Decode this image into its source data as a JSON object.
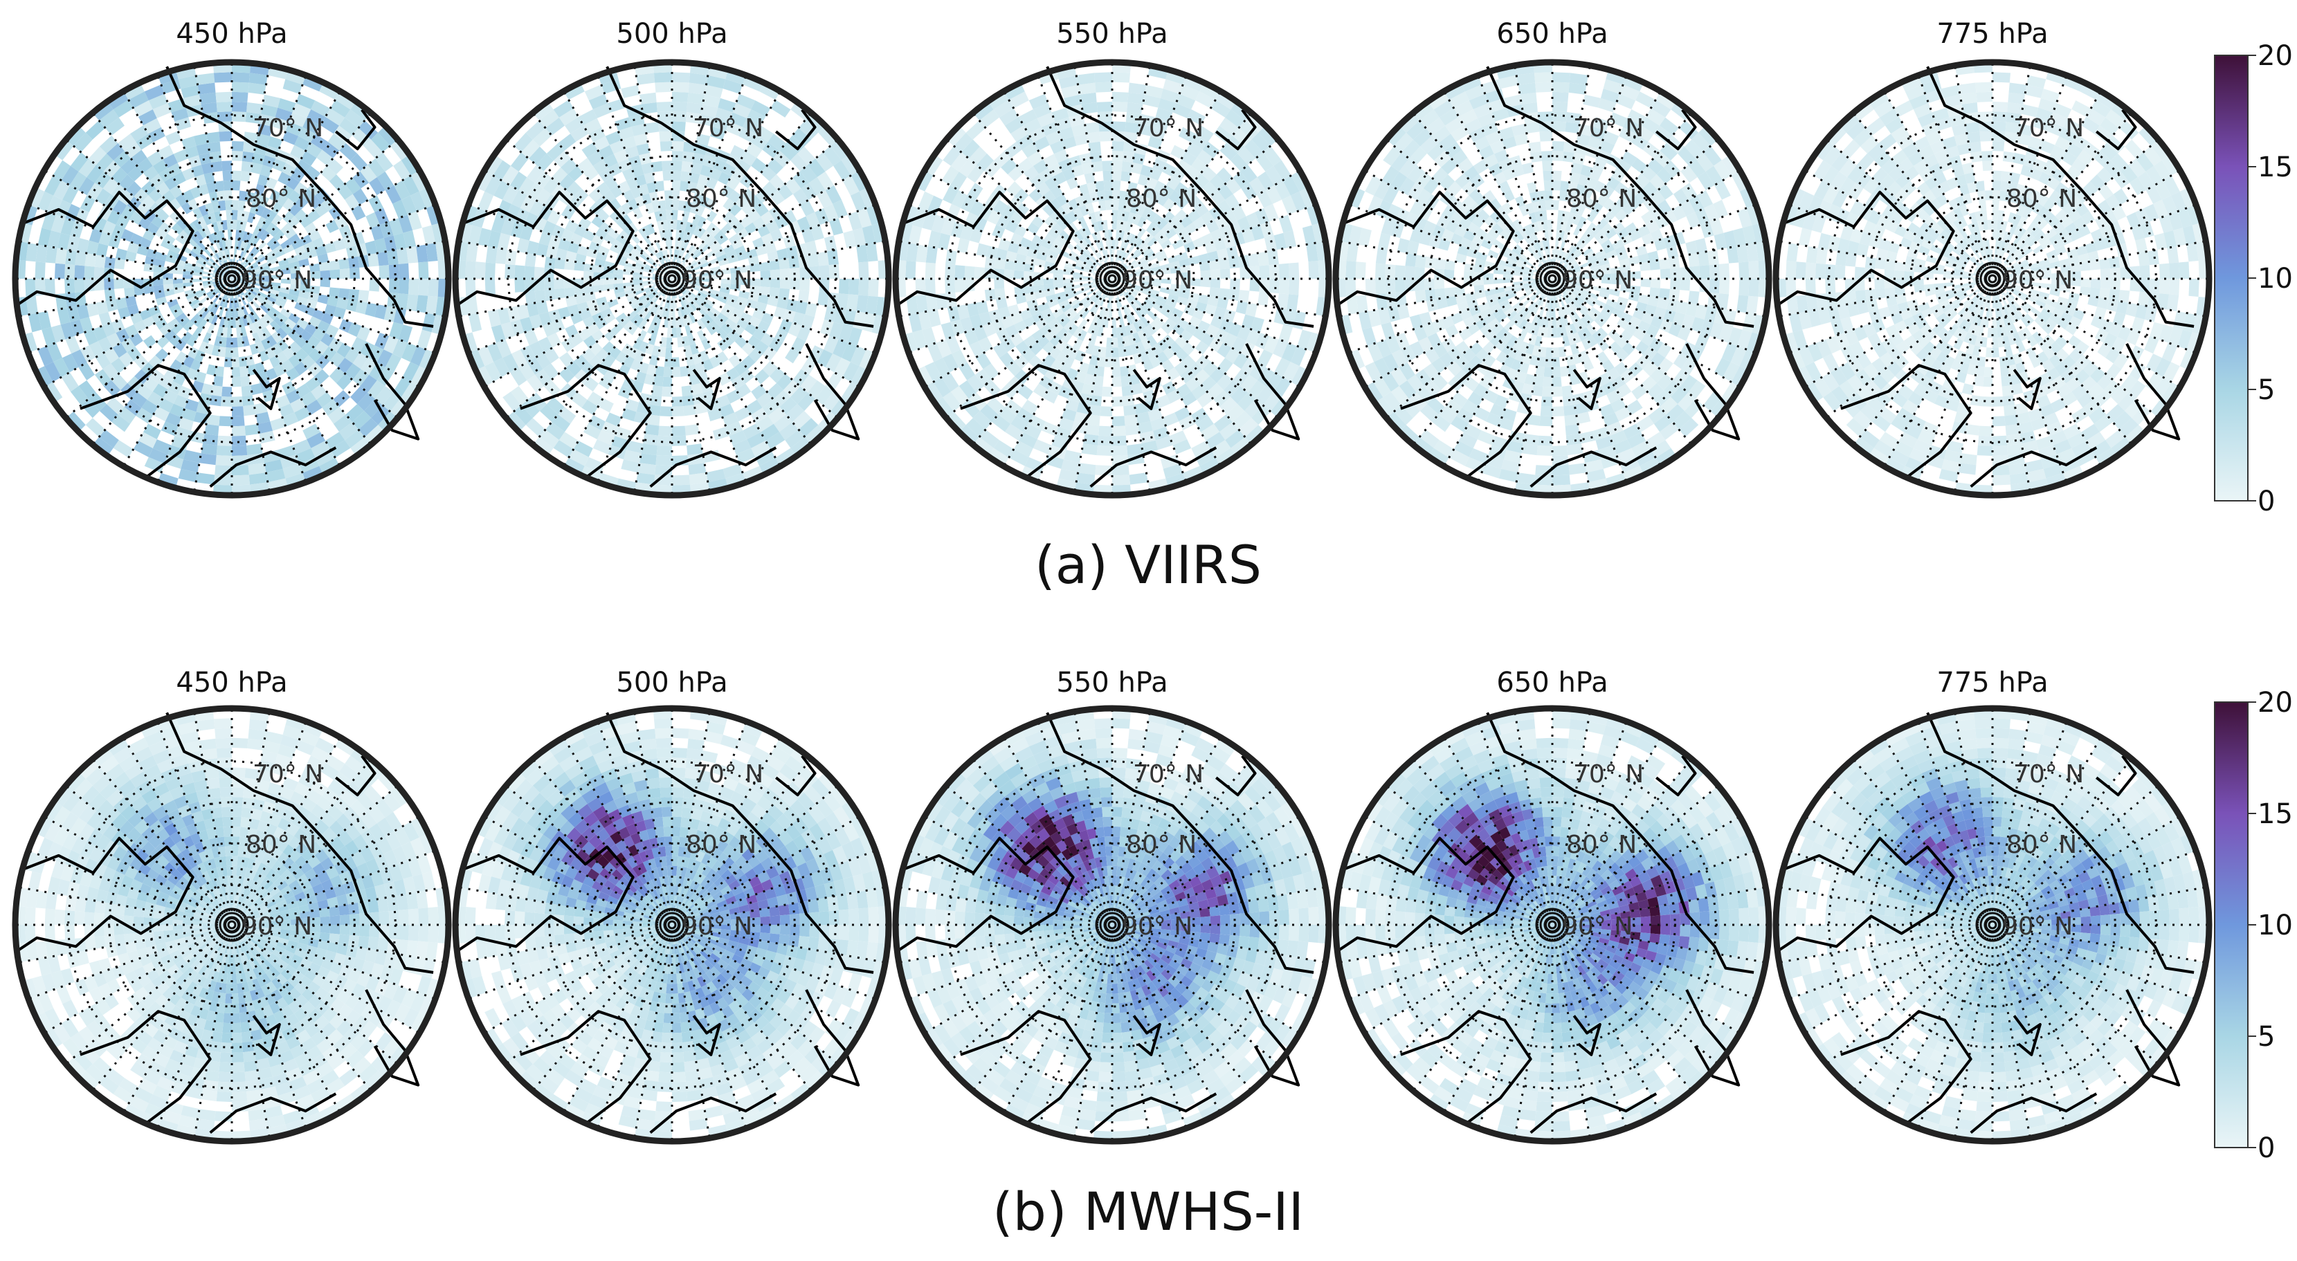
{
  "chart_data": {
    "type": "heatmap",
    "projection": "north-polar-stereographic",
    "latitude_circle_labels": [
      "70° N",
      "80° N",
      "90° N"
    ],
    "colorbar": {
      "range": [
        0,
        20
      ],
      "ticks": [
        "0",
        "5",
        "10",
        "15",
        "20"
      ],
      "colors": [
        "#eaf5f7",
        "#a9d6e5",
        "#6f98dd",
        "#7a52b8",
        "#3e1138"
      ]
    },
    "rows": [
      {
        "caption": "(a) VIIRS",
        "panels": [
          {
            "title": "450 hPa",
            "background_level": 4.5,
            "hotspots": []
          },
          {
            "title": "500 hPa",
            "background_level": 2.5,
            "hotspots": []
          },
          {
            "title": "550 hPa",
            "background_level": 1.8,
            "hotspots": []
          },
          {
            "title": "650 hPa",
            "background_level": 1.6,
            "hotspots": []
          },
          {
            "title": "775 hPa",
            "background_level": 1.2,
            "hotspots": []
          }
        ]
      },
      {
        "caption": "(b) MWHS-II",
        "panels": [
          {
            "title": "450 hPa",
            "background_level": 0.8,
            "hotspots": [
              {
                "dir_deg": 130,
                "lat": 78,
                "peak": 9
              },
              {
                "dir_deg": 20,
                "lat": 78,
                "peak": 7
              },
              {
                "dir_deg": 280,
                "lat": 80,
                "peak": 6
              }
            ]
          },
          {
            "title": "500 hPa",
            "background_level": 1.0,
            "hotspots": [
              {
                "dir_deg": 130,
                "lat": 78,
                "peak": 18
              },
              {
                "dir_deg": 20,
                "lat": 78,
                "peak": 12
              },
              {
                "dir_deg": 300,
                "lat": 81,
                "peak": 8
              }
            ]
          },
          {
            "title": "550 hPa",
            "background_level": 1.2,
            "hotspots": [
              {
                "dir_deg": 130,
                "lat": 78,
                "peak": 20
              },
              {
                "dir_deg": 20,
                "lat": 78,
                "peak": 14
              },
              {
                "dir_deg": 300,
                "lat": 81,
                "peak": 10
              }
            ]
          },
          {
            "title": "650 hPa",
            "background_level": 1.2,
            "hotspots": [
              {
                "dir_deg": 130,
                "lat": 78,
                "peak": 20
              },
              {
                "dir_deg": 10,
                "lat": 78,
                "peak": 17
              },
              {
                "dir_deg": 300,
                "lat": 81,
                "peak": 8
              }
            ]
          },
          {
            "title": "775 hPa",
            "background_level": 0.9,
            "hotspots": [
              {
                "dir_deg": 120,
                "lat": 78,
                "peak": 14
              },
              {
                "dir_deg": 15,
                "lat": 78,
                "peak": 11
              },
              {
                "dir_deg": 290,
                "lat": 81,
                "peak": 6
              }
            ]
          }
        ]
      }
    ]
  }
}
